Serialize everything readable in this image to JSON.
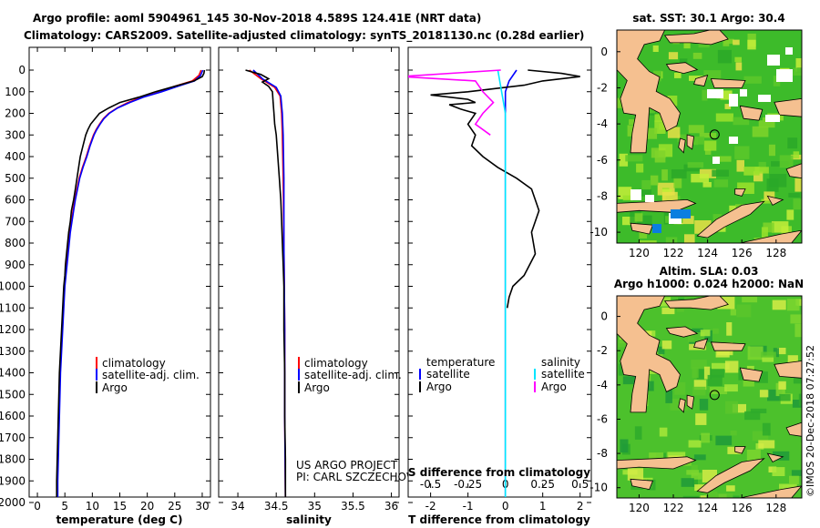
{
  "header": {
    "title_line1": "Argo profile: aoml 5904961_145 30-Nov-2018 4.589S 124.41E (NRT data)",
    "title_line2": "Climatology: CARS2009. Satellite-adjusted climatology: synTS_20181130.nc (0.28d earlier)"
  },
  "colors": {
    "climatology": "#ff0000",
    "satellite": "#0000ff",
    "argo": "#000000",
    "sal_satellite": "#00e5ff",
    "sal_argo": "#ff00ff",
    "land": "#f5c090"
  },
  "depth_axis": {
    "ticks": [
      "0",
      "100",
      "200",
      "300",
      "400",
      "500",
      "600",
      "700",
      "800",
      "900",
      "1000",
      "1100",
      "1200",
      "1300",
      "1400",
      "1500",
      "1600",
      "1700",
      "1800",
      "1900",
      "2000"
    ],
    "ylim": [
      0,
      2080
    ]
  },
  "chart_data": [
    {
      "type": "line",
      "name": "temperature-profile",
      "xlabel": "temperature (deg C)",
      "xlim": [
        -1.5,
        31.5
      ],
      "xticks": [
        "0",
        "5",
        "10",
        "15",
        "20",
        "25",
        "30"
      ],
      "legend": [
        "climatology",
        "satellite-adj. clim.",
        "Argo"
      ],
      "series": [
        {
          "name": "climatology",
          "color": "#ff0000",
          "points": [
            [
              29.8,
              0
            ],
            [
              29.4,
              25
            ],
            [
              28.2,
              50
            ],
            [
              25.0,
              75
            ],
            [
              22.5,
              100
            ],
            [
              19.0,
              125
            ],
            [
              16.5,
              150
            ],
            [
              14.5,
              175
            ],
            [
              13.0,
              200
            ],
            [
              12.0,
              225
            ],
            [
              11.3,
              250
            ],
            [
              10.7,
              275
            ],
            [
              10.2,
              300
            ],
            [
              9.5,
              350
            ],
            [
              8.9,
              400
            ],
            [
              8.2,
              450
            ],
            [
              7.6,
              500
            ],
            [
              7.2,
              550
            ],
            [
              6.8,
              600
            ],
            [
              6.5,
              650
            ],
            [
              6.2,
              700
            ],
            [
              5.9,
              750
            ],
            [
              5.7,
              800
            ],
            [
              5.5,
              850
            ],
            [
              5.3,
              900
            ],
            [
              5.1,
              950
            ],
            [
              4.9,
              1000
            ],
            [
              4.7,
              1100
            ],
            [
              4.5,
              1200
            ],
            [
              4.3,
              1300
            ],
            [
              4.1,
              1400
            ],
            [
              4.0,
              1500
            ],
            [
              3.9,
              1600
            ],
            [
              3.8,
              1700
            ],
            [
              3.7,
              1800
            ],
            [
              3.6,
              1900
            ],
            [
              3.6,
              2000
            ]
          ]
        },
        {
          "name": "satellite-adj. clim.",
          "color": "#0000ff",
          "points": [
            [
              30.1,
              0
            ],
            [
              29.7,
              25
            ],
            [
              28.6,
              50
            ],
            [
              25.6,
              75
            ],
            [
              22.6,
              100
            ],
            [
              19.3,
              125
            ],
            [
              16.8,
              150
            ],
            [
              14.6,
              175
            ],
            [
              13.1,
              200
            ],
            [
              12.1,
              225
            ],
            [
              11.4,
              250
            ],
            [
              10.8,
              275
            ],
            [
              10.3,
              300
            ],
            [
              9.6,
              350
            ],
            [
              9.0,
              400
            ],
            [
              8.3,
              450
            ],
            [
              7.7,
              500
            ],
            [
              7.3,
              550
            ],
            [
              6.9,
              600
            ],
            [
              6.6,
              650
            ],
            [
              6.3,
              700
            ],
            [
              6.0,
              750
            ],
            [
              5.8,
              800
            ],
            [
              5.6,
              850
            ],
            [
              5.4,
              900
            ],
            [
              5.2,
              950
            ],
            [
              5.0,
              1000
            ],
            [
              4.8,
              1100
            ],
            [
              4.6,
              1200
            ],
            [
              4.4,
              1300
            ],
            [
              4.2,
              1400
            ],
            [
              4.1,
              1500
            ],
            [
              4.0,
              1600
            ],
            [
              3.9,
              1700
            ],
            [
              3.8,
              1800
            ],
            [
              3.7,
              1900
            ],
            [
              3.7,
              2000
            ]
          ]
        },
        {
          "name": "Argo",
          "color": "#000000",
          "points": [
            [
              30.4,
              0
            ],
            [
              30.3,
              15
            ],
            [
              30.0,
              30
            ],
            [
              28.5,
              50
            ],
            [
              25.0,
              75
            ],
            [
              21.5,
              100
            ],
            [
              18.5,
              125
            ],
            [
              15.0,
              150
            ],
            [
              13.0,
              175
            ],
            [
              11.3,
              200
            ],
            [
              10.5,
              225
            ],
            [
              9.7,
              250
            ],
            [
              9.2,
              275
            ],
            [
              8.8,
              300
            ],
            [
              8.3,
              350
            ],
            [
              7.8,
              400
            ],
            [
              7.5,
              450
            ],
            [
              7.2,
              500
            ],
            [
              6.9,
              550
            ],
            [
              6.6,
              600
            ],
            [
              6.2,
              650
            ],
            [
              6.0,
              700
            ],
            [
              5.7,
              750
            ],
            [
              5.5,
              800
            ],
            [
              5.3,
              850
            ],
            [
              5.1,
              900
            ],
            [
              5.0,
              950
            ],
            [
              4.8,
              1000
            ],
            [
              4.6,
              1100
            ],
            [
              4.4,
              1200
            ],
            [
              4.2,
              1300
            ],
            [
              4.0,
              1400
            ],
            [
              3.9,
              1500
            ],
            [
              3.8,
              1600
            ],
            [
              3.7,
              1700
            ],
            [
              3.6,
              1800
            ],
            [
              3.5,
              1900
            ],
            [
              3.5,
              2000
            ]
          ]
        }
      ]
    },
    {
      "type": "line",
      "name": "salinity-profile",
      "xlabel": "salinity",
      "xlim": [
        33.75,
        36.1
      ],
      "xticks": [
        "34",
        "34.5",
        "35",
        "35.5",
        "36"
      ],
      "legend": [
        "climatology",
        "satellite-adj. clim.",
        "Argo"
      ],
      "series": [
        {
          "name": "climatology",
          "color": "#ff0000",
          "points": [
            [
              34.15,
              0
            ],
            [
              34.3,
              40
            ],
            [
              34.48,
              80
            ],
            [
              34.55,
              120
            ],
            [
              34.57,
              200
            ],
            [
              34.58,
              300
            ],
            [
              34.59,
              500
            ],
            [
              34.6,
              800
            ],
            [
              34.61,
              1200
            ],
            [
              34.61,
              1600
            ],
            [
              34.62,
              2000
            ]
          ]
        },
        {
          "name": "satellite-adj. clim.",
          "color": "#0000ff",
          "points": [
            [
              34.2,
              0
            ],
            [
              34.32,
              40
            ],
            [
              34.5,
              80
            ],
            [
              34.56,
              120
            ],
            [
              34.58,
              200
            ],
            [
              34.59,
              300
            ],
            [
              34.6,
              500
            ],
            [
              34.6,
              800
            ],
            [
              34.61,
              1200
            ],
            [
              34.61,
              1600
            ],
            [
              34.62,
              2000
            ]
          ]
        },
        {
          "name": "Argo",
          "color": "#000000",
          "points": [
            [
              34.1,
              0
            ],
            [
              34.3,
              20
            ],
            [
              34.4,
              40
            ],
            [
              34.32,
              55
            ],
            [
              34.4,
              75
            ],
            [
              34.45,
              100
            ],
            [
              34.46,
              150
            ],
            [
              34.47,
              200
            ],
            [
              34.48,
              250
            ],
            [
              34.5,
              300
            ],
            [
              34.52,
              400
            ],
            [
              34.54,
              500
            ],
            [
              34.56,
              600
            ],
            [
              34.57,
              700
            ],
            [
              34.58,
              800
            ],
            [
              34.59,
              900
            ],
            [
              34.6,
              1000
            ],
            [
              34.6,
              1200
            ],
            [
              34.61,
              1400
            ],
            [
              34.61,
              1600
            ],
            [
              34.62,
              1800
            ],
            [
              34.62,
              2000
            ]
          ]
        }
      ]
    },
    {
      "type": "line",
      "name": "difference-profile",
      "xlabel": "T difference from climatology",
      "xlabel2": "S difference from climatology",
      "xlim": [
        -2.6,
        2.3
      ],
      "xticks": [
        "-2",
        "-1",
        "0",
        "1",
        "2"
      ],
      "x2ticks": [
        "-0.5",
        "-0.25",
        "0",
        "0.25",
        "0.5"
      ],
      "legend_left_title": "temperature",
      "legend_right_title": "salinity",
      "legend_left": [
        "satellite",
        "Argo"
      ],
      "legend_right": [
        "satellite",
        "Argo"
      ],
      "series": [
        {
          "name": "T satellite",
          "color": "#0000ff",
          "points": [
            [
              0.3,
              0
            ],
            [
              0.1,
              50
            ],
            [
              0.0,
              100
            ],
            [
              0.0,
              300
            ],
            [
              0.0,
              600
            ],
            [
              0.0,
              1000
            ],
            [
              0.0,
              2000
            ]
          ]
        },
        {
          "name": "T Argo",
          "color": "#000000",
          "points": [
            [
              0.6,
              0
            ],
            [
              1.5,
              15
            ],
            [
              2.0,
              30
            ],
            [
              1.0,
              50
            ],
            [
              0.5,
              70
            ],
            [
              -1.0,
              100
            ],
            [
              -2.0,
              115
            ],
            [
              -1.0,
              135
            ],
            [
              -0.8,
              150
            ],
            [
              -1.5,
              160
            ],
            [
              -1.2,
              180
            ],
            [
              -0.8,
              200
            ],
            [
              -1.0,
              250
            ],
            [
              -0.8,
              300
            ],
            [
              -0.9,
              350
            ],
            [
              -0.6,
              400
            ],
            [
              -0.2,
              450
            ],
            [
              0.3,
              500
            ],
            [
              0.7,
              550
            ],
            [
              0.9,
              650
            ],
            [
              0.7,
              750
            ],
            [
              0.8,
              850
            ],
            [
              0.5,
              950
            ],
            [
              0.2,
              1000
            ],
            [
              0.1,
              1050
            ],
            [
              0.05,
              1100
            ]
          ]
        },
        {
          "name": "S satellite",
          "color": "#00e5ff",
          "points": [
            [
              -0.05,
              0
            ],
            [
              0.0,
              200
            ],
            [
              0.0,
              500
            ],
            [
              0.0,
              1000
            ],
            [
              0.0,
              1500
            ],
            [
              0.0,
              2000
            ]
          ]
        },
        {
          "name": "S Argo",
          "color": "#ff00ff",
          "points": [
            [
              -0.03,
              0
            ],
            [
              -0.7,
              30
            ],
            [
              -0.2,
              50
            ],
            [
              -0.15,
              100
            ],
            [
              -0.08,
              150
            ],
            [
              -0.15,
              200
            ],
            [
              -0.2,
              250
            ],
            [
              -0.1,
              300
            ]
          ]
        }
      ]
    }
  ],
  "credits": {
    "line1": "US ARGO PROJECT",
    "line2": "PI: CARL SZCZECHOWSKI"
  },
  "maps": {
    "top_title": "sat. SST: 30.1 Argo: 30.4",
    "bottom_title1": "Altim. SLA: 0.03",
    "bottom_title2": "Argo h1000: 0.024 h2000: NaN",
    "yticks": [
      "0",
      "-2",
      "-4",
      "-6",
      "-8",
      "-10"
    ],
    "xticks": [
      "120",
      "122",
      "124",
      "126",
      "128"
    ],
    "marker_lon": 124.41,
    "marker_lat": -4.589
  },
  "watermark": "©IMOS 20-Dec-2018 07:27:52"
}
